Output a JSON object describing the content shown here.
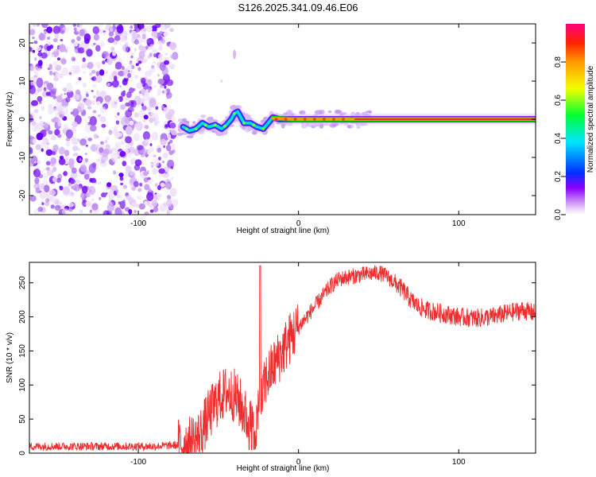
{
  "title": "S126.2025.341.09.46.E06",
  "chart_data": [
    {
      "type": "heatmap",
      "xlabel": "Height of straight line (km)",
      "ylabel": "Frequency (Hz)",
      "xlim": [
        -168,
        148
      ],
      "ylim": [
        -25,
        25
      ],
      "xticks": [
        -100,
        0,
        100
      ],
      "yticks": [
        -20,
        -10,
        0,
        10,
        20
      ],
      "ridge": {
        "x": [
          -72,
          -68,
          -64,
          -60,
          -56,
          -52,
          -48,
          -45,
          -42,
          -40,
          -38,
          -36,
          -34,
          -30,
          -26,
          -22,
          -18,
          -16,
          -12,
          -8,
          -4,
          0,
          5,
          10,
          20,
          30,
          40,
          60,
          80,
          100,
          120,
          148
        ],
        "y": [
          -2,
          -3,
          -2.5,
          -1,
          -2,
          -1.5,
          -2.5,
          -1.5,
          0,
          1.5,
          2,
          0.5,
          -1,
          -1,
          -2,
          -2.5,
          -0.5,
          0.5,
          0,
          0,
          0,
          0,
          0,
          0,
          0,
          0,
          0,
          0,
          0,
          0,
          0,
          0
        ]
      },
      "noise_region_x": [
        -168,
        -77
      ],
      "colorbar": {
        "label": "Normalized spectral amplitude",
        "range": [
          0,
          1
        ],
        "ticks": [
          0.0,
          0.2,
          0.4,
          0.6,
          0.8
        ]
      }
    },
    {
      "type": "line",
      "xlabel": "Height of straight line (km)",
      "ylabel": "SNR (10 * v/v)",
      "xlim": [
        -168,
        148
      ],
      "ylim": [
        0,
        280
      ],
      "xticks": [
        -100,
        0,
        100
      ],
      "yticks": [
        0,
        50,
        100,
        150,
        200,
        250
      ],
      "series": [
        {
          "name": "SNR",
          "color": "#ee2e2e",
          "x": [
            -168,
            -150,
            -130,
            -110,
            -90,
            -75,
            -68,
            -62,
            -56,
            -50,
            -45,
            -40,
            -36,
            -32,
            -28,
            -24,
            -22,
            -20,
            -15,
            -10,
            -5,
            0,
            5,
            10,
            15,
            20,
            25,
            30,
            40,
            50,
            55,
            60,
            65,
            70,
            75,
            80,
            90,
            100,
            110,
            120,
            130,
            140,
            148
          ],
          "values": [
            10,
            10,
            10,
            10,
            10,
            12,
            15,
            25,
            55,
            80,
            90,
            85,
            70,
            50,
            35,
            60,
            90,
            110,
            130,
            150,
            170,
            185,
            200,
            215,
            230,
            245,
            255,
            258,
            262,
            265,
            260,
            250,
            240,
            225,
            215,
            210,
            205,
            200,
            198,
            200,
            205,
            210,
            205
          ],
          "spike": {
            "x": -24,
            "y": 275
          }
        }
      ]
    }
  ]
}
